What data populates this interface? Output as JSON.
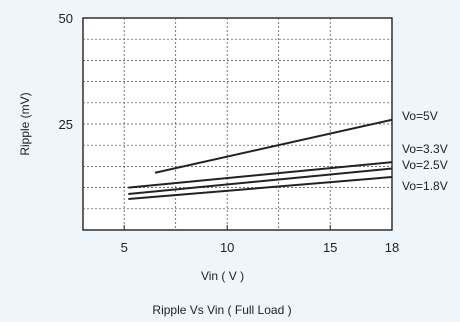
{
  "chart_data": {
    "type": "line",
    "title": "Ripple  Vs Vin ( Full Load )",
    "xlabel": "Vin ( V )",
    "ylabel": "Ripple (mV)",
    "xlim": [
      3,
      18
    ],
    "ylim": [
      0,
      50
    ],
    "xticks": [
      5,
      10,
      15,
      18
    ],
    "xtick_labels": [
      "5",
      "10",
      "15",
      "18"
    ],
    "yticks": [
      25,
      50
    ],
    "ytick_labels": [
      "25",
      "50"
    ],
    "grid": true,
    "legend": "inline-right",
    "series": [
      {
        "name": "Vo=5V",
        "x": [
          6.5,
          18
        ],
        "y": [
          13.5,
          26
        ]
      },
      {
        "name": "Vo=3.3V",
        "x": [
          5.2,
          18
        ],
        "y": [
          10,
          16
        ]
      },
      {
        "name": "Vo=2.5V",
        "x": [
          5.2,
          18
        ],
        "y": [
          8.5,
          14.5
        ]
      },
      {
        "name": "Vo=1.8V",
        "x": [
          5.2,
          18
        ],
        "y": [
          7.3,
          12.5
        ]
      }
    ]
  },
  "colors": {
    "background": "#eef5fb",
    "plot_background": "#ffffff",
    "line": "#222222",
    "grid": "#444444"
  }
}
